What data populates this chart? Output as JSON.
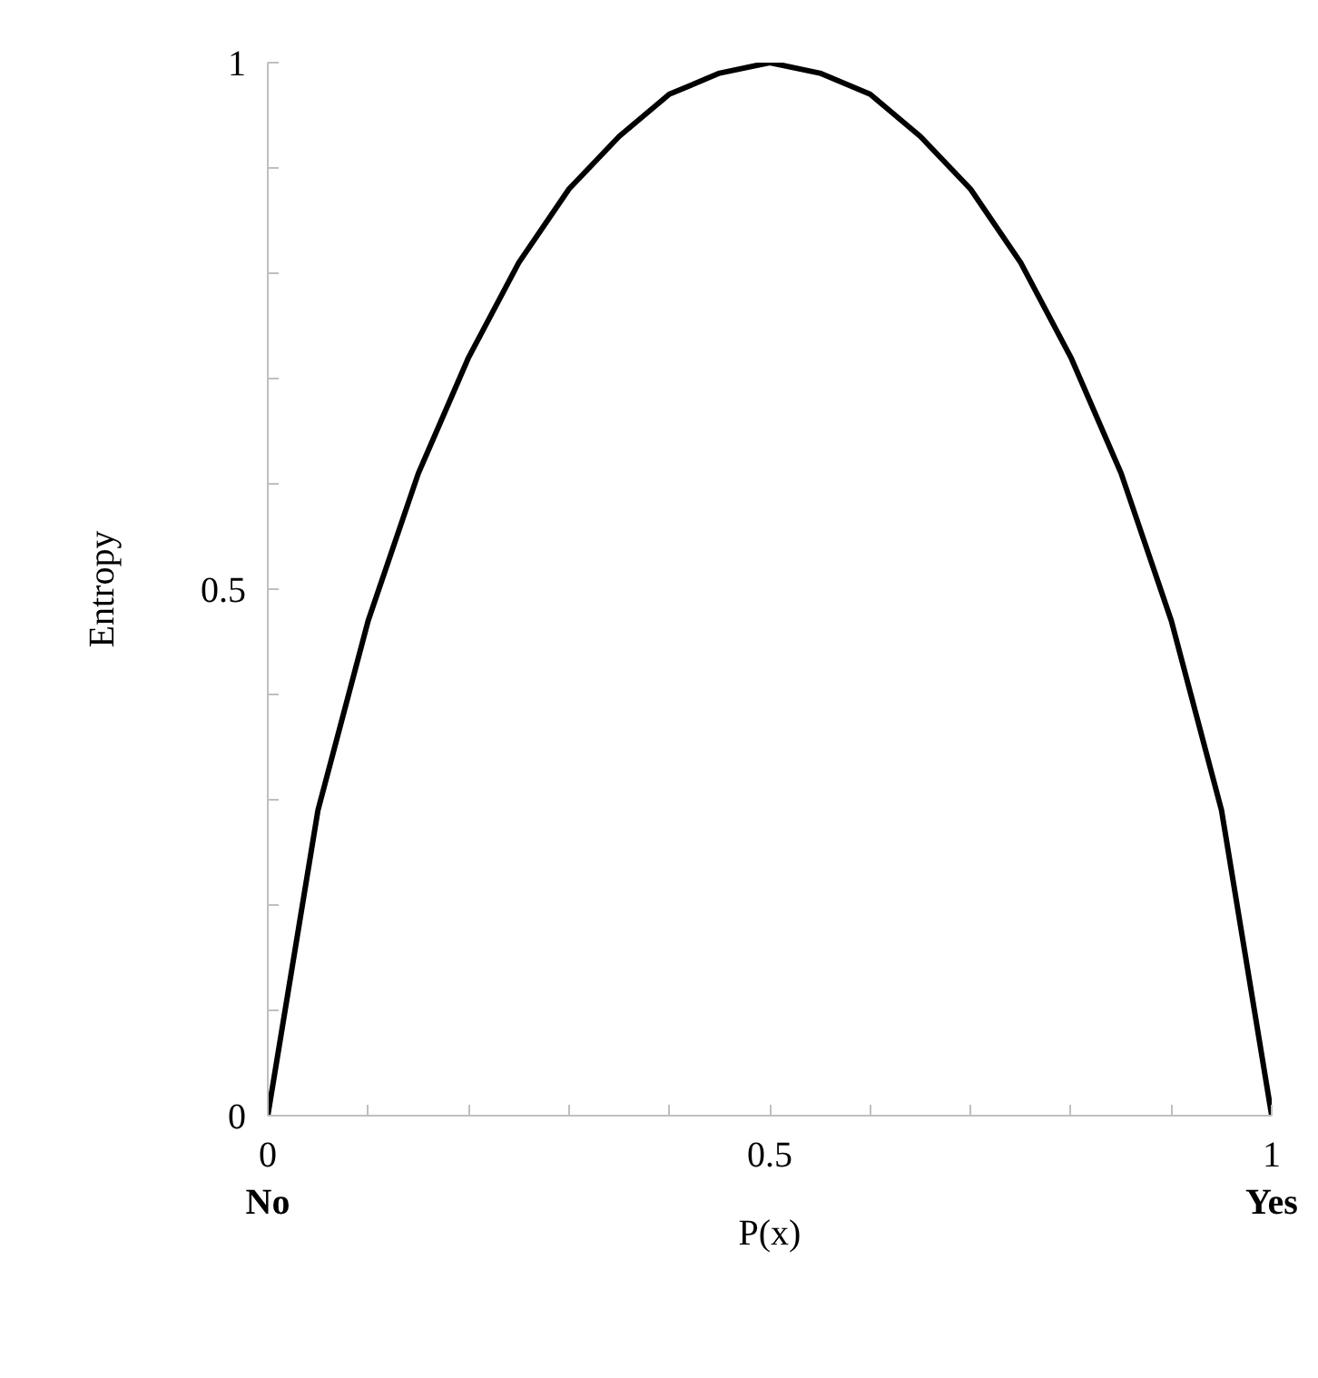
{
  "chart_data": {
    "type": "line",
    "xlabel": "P(x)",
    "ylabel": "Entropy",
    "x": [
      0,
      0.05,
      0.1,
      0.15,
      0.2,
      0.25,
      0.3,
      0.35,
      0.4,
      0.45,
      0.5,
      0.55,
      0.6,
      0.65,
      0.7,
      0.75,
      0.8,
      0.85,
      0.9,
      0.95,
      1
    ],
    "series": [
      {
        "color": "#000000",
        "values": [
          0,
          0.29,
          0.47,
          0.61,
          0.72,
          0.81,
          0.88,
          0.93,
          0.97,
          0.99,
          1,
          0.99,
          0.97,
          0.93,
          0.88,
          0.81,
          0.72,
          0.61,
          0.47,
          0.29,
          0
        ]
      }
    ],
    "xlim": [
      0,
      1
    ],
    "ylim": [
      0,
      1
    ],
    "xticks": [
      0,
      {
        "value": 0.1,
        "label": null
      },
      {
        "value": 0.2,
        "label": null
      },
      {
        "value": 0.3,
        "label": null
      },
      {
        "value": 0.4,
        "label": null
      },
      0.5,
      {
        "value": 0.6,
        "label": null
      },
      {
        "value": 0.7,
        "label": null
      },
      {
        "value": 0.8,
        "label": null
      },
      {
        "value": 0.9,
        "label": null
      },
      1
    ],
    "yticks": [
      0,
      {
        "value": 0.1,
        "label": null
      },
      {
        "value": 0.2,
        "label": null
      },
      {
        "value": 0.3,
        "label": null
      },
      {
        "value": 0.4,
        "label": null
      },
      0.5,
      {
        "value": 0.6,
        "label": null
      },
      {
        "value": 0.7,
        "label": null
      },
      {
        "value": 0.8,
        "label": null
      },
      {
        "value": 0.9,
        "label": null
      },
      1
    ],
    "annotations": [
      "No",
      "Yes"
    ],
    "grid": false,
    "marker": "none",
    "line_style": "solid"
  }
}
